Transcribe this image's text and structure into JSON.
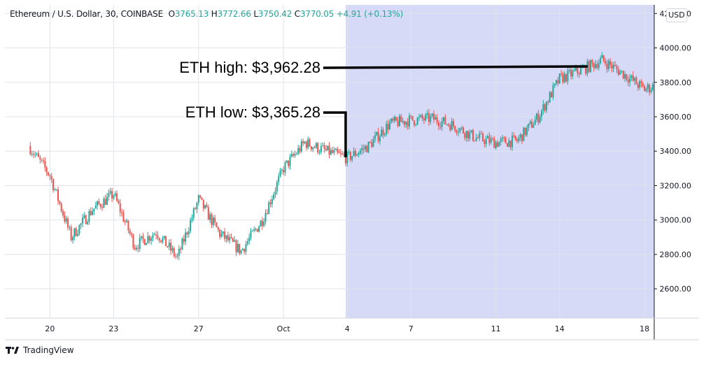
{
  "header": {
    "symbol": "Ethereum / U.S. Dollar, 30, COINBASE",
    "open_label": "O",
    "open": "3765.13",
    "high_label": "H",
    "high": "3772.66",
    "low_label": "L",
    "low": "3750.42",
    "close_label": "C",
    "close": "3770.05",
    "change": "+4.91 (+0.13%)"
  },
  "currency": "USD",
  "brand": {
    "name": "TradingView",
    "icon": "tradingview-logo-icon"
  },
  "colors": {
    "up": "#26a69a",
    "down": "#ef5350",
    "highlight": "#d6daf6",
    "annotation": "#000000"
  },
  "chart_data": {
    "type": "line",
    "title": "Ethereum / U.S. Dollar, 30, COINBASE",
    "xlabel": "",
    "ylabel": "",
    "ylim": [
      2430,
      4250
    ],
    "y_ticks": [
      "4200.00",
      "4000.00",
      "3800.00",
      "3600.00",
      "3400.00",
      "3200.00",
      "3000.00",
      "2800.00",
      "2600.00"
    ],
    "x_ticks": [
      "20",
      "23",
      "27",
      "Oct",
      "4",
      "7",
      "11",
      "14",
      "18"
    ],
    "grid": true,
    "x": [
      "Sep 19",
      "Sep 20",
      "Sep 21",
      "Sep 22",
      "Sep 23",
      "Sep 24",
      "Sep 25",
      "Sep 26",
      "Sep 27",
      "Sep 28",
      "Sep 29",
      "Sep 30",
      "Oct 1",
      "Oct 2",
      "Oct 3",
      "Oct 4",
      "Oct 5",
      "Oct 6",
      "Oct 7",
      "Oct 8",
      "Oct 9",
      "Oct 10",
      "Oct 11",
      "Oct 12",
      "Oct 13",
      "Oct 14",
      "Oct 15",
      "Oct 16",
      "Oct 17",
      "Oct 18",
      "Oct 19"
    ],
    "series": [
      {
        "values": [
          3430,
          3260,
          2900,
          3060,
          3150,
          2850,
          2930,
          2780,
          3120,
          2920,
          2820,
          3000,
          3300,
          3450,
          3400,
          3360,
          3430,
          3560,
          3580,
          3590,
          3550,
          3480,
          3450,
          3460,
          3600,
          3820,
          3870,
          3930,
          3850,
          3760,
          3800
        ]
      }
    ],
    "annotations": [
      {
        "text": "ETH high: $3,962.28",
        "value": 3962.28
      },
      {
        "text": "ETH low: $3,365.28",
        "value": 3365.28
      }
    ]
  }
}
